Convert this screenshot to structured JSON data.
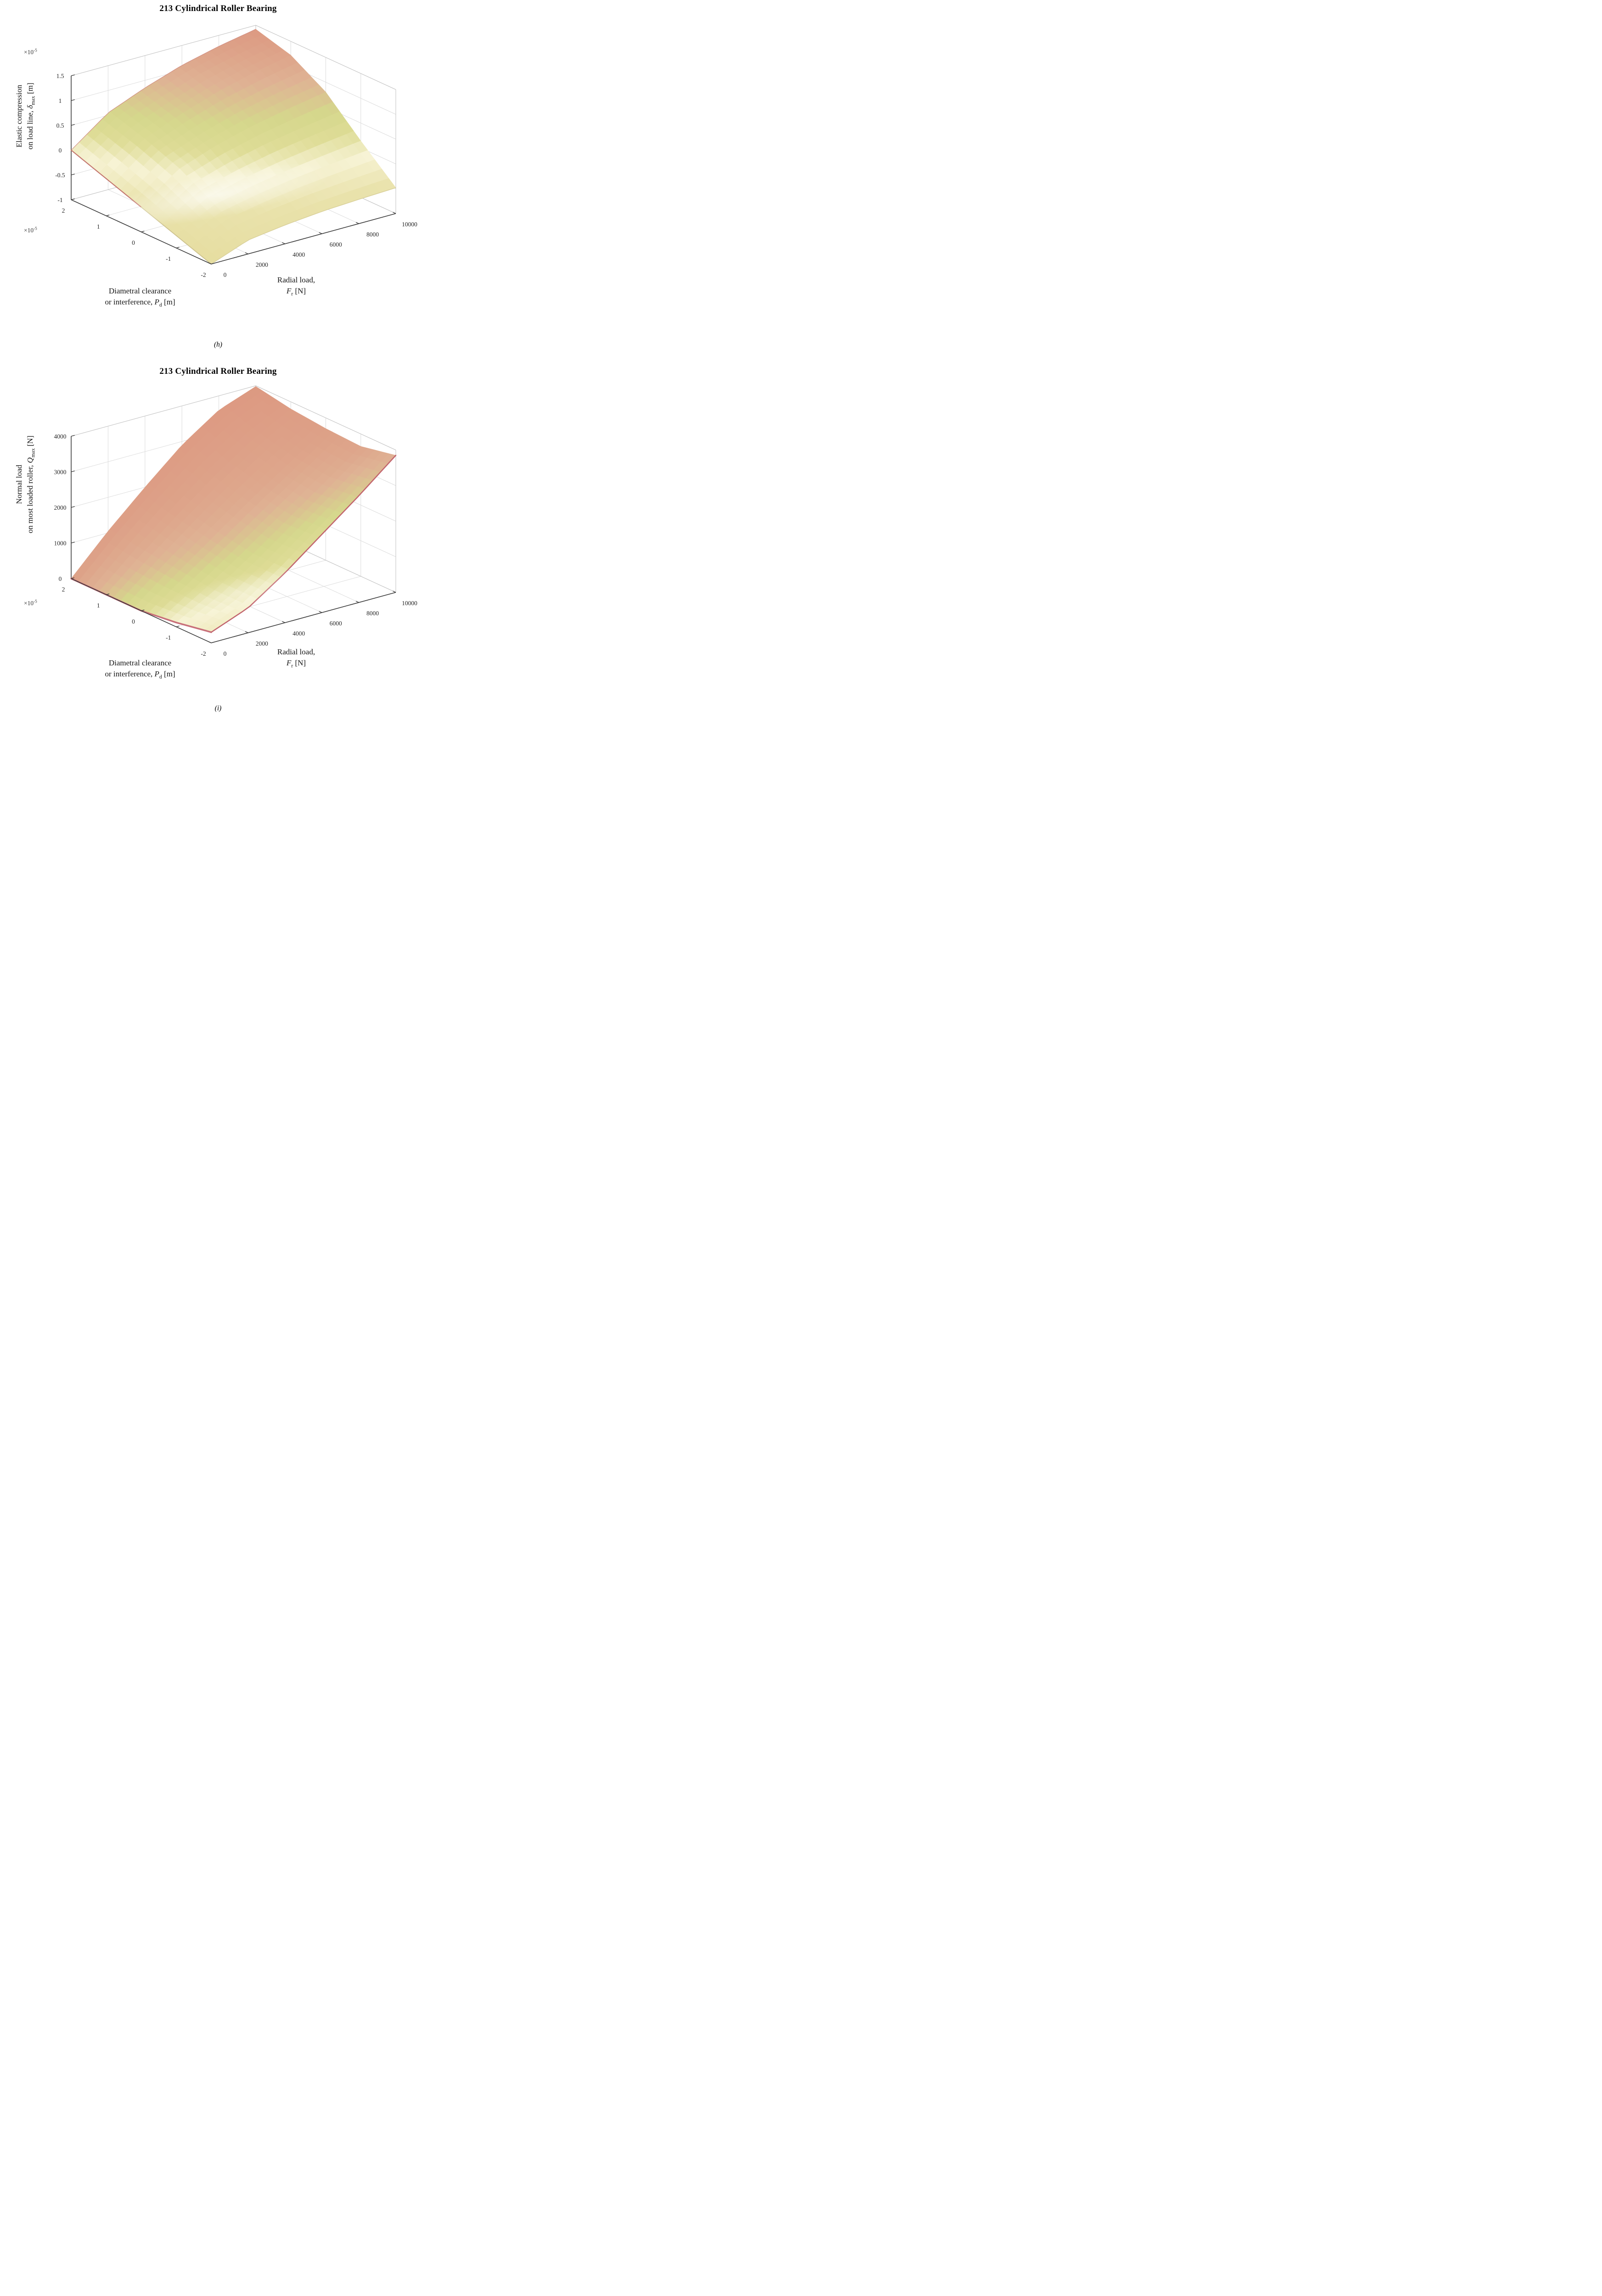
{
  "page": {
    "background": "#ffffff"
  },
  "style": {
    "colormap": [
      [
        0,
        "#e6dda0"
      ],
      [
        0.22,
        "#e9e2ab"
      ],
      [
        0.38,
        "#f7f3d5"
      ],
      [
        0.5,
        "#dedc96"
      ],
      [
        0.62,
        "#d5d78c"
      ],
      [
        0.78,
        "#dfb294"
      ],
      [
        1,
        "#dc957f"
      ]
    ],
    "axis_color": "#3a3a3a",
    "grid_color": "#dcdcdc",
    "box_color": "#c2c2c2",
    "text_color": "#262626",
    "highlight_color": "#ffffff",
    "surface_edge_red": "#c4776f",
    "surface_edge_khaki": "#cdc28e",
    "surface_edge_yellow": "#d9d09a",
    "surface_edge_salmon": "#d29084",
    "surface_edge_pink": "#c8707a",
    "surface_edge_darkpink": "#c2656e"
  },
  "figures": [
    {
      "title": "213 Cylindrical Roller Bearing",
      "caption": "(h)",
      "z_exponent": {
        "mult": "×10",
        "exp": "-5"
      },
      "pd_exponent": {
        "mult": "×10",
        "exp": "-5"
      },
      "zlabel": {
        "line1": "Elastic compression",
        "line2_pre": "on load line, ",
        "sym": "δ",
        "sub": "max",
        "unit": " [m]"
      },
      "xlabel": {
        "line1": "Diametral clearance",
        "line2_pre": "or interference, ",
        "sym": "P",
        "sub": "d",
        "unit": " [m]"
      },
      "ylabel": {
        "line1": "Radial load,",
        "sym": "F",
        "sub": "r",
        "unit": " [N]"
      }
    },
    {
      "title": "213 Cylindrical Roller Bearing",
      "caption": "(i)",
      "pd_exponent": {
        "mult": "×10",
        "exp": "-5"
      },
      "zlabel": {
        "line1": "Normal load",
        "line2_pre": "on most loaded roller, ",
        "sym": "Q",
        "sub": "max",
        "unit": " [N]"
      },
      "xlabel": {
        "line1": "Diametral clearance",
        "line2_pre": "or interference, ",
        "sym": "P",
        "sub": "d",
        "unit": " [m]"
      },
      "ylabel": {
        "line1": "Radial load,",
        "sym": "F",
        "sub": "r",
        "unit": " [N]"
      }
    }
  ],
  "chart_data": [
    {
      "type": "surface",
      "title": "213 Cylindrical Roller Bearing",
      "x": {
        "label": "Diametral clearance or interference, Pd",
        "unit": "m",
        "scale": "1e-5",
        "values": [
          2,
          1,
          0,
          -1,
          -2
        ]
      },
      "y": {
        "label": "Radial load, Fr",
        "unit": "N",
        "values": [
          0,
          2000,
          4000,
          6000,
          8000,
          10000
        ]
      },
      "z": {
        "label": "Elastic compression on load line, δmax",
        "unit": "m",
        "scale": "1e-5",
        "min": -1,
        "max": 1.5,
        "ticks": [
          -1,
          -0.5,
          0,
          0.5,
          1,
          1.5
        ]
      },
      "z_grid": [
        [
          0.0,
          0.55,
          0.85,
          1.1,
          1.28,
          1.42
        ],
        [
          -0.25,
          0.33,
          0.63,
          0.88,
          1.07,
          1.22
        ],
        [
          -0.5,
          0.05,
          0.32,
          0.52,
          0.67,
          0.8
        ],
        [
          -0.75,
          -0.35,
          -0.18,
          -0.05,
          0.05,
          0.14
        ],
        [
          -1.0,
          -0.72,
          -0.62,
          -0.55,
          -0.51,
          -0.48
        ]
      ],
      "color_grid": null,
      "grid_on": true,
      "legend": false
    },
    {
      "type": "surface",
      "title": "213 Cylindrical Roller Bearing",
      "x": {
        "label": "Diametral clearance or interference, Pd",
        "unit": "m",
        "scale": "1e-5",
        "values": [
          2,
          1,
          0,
          -1,
          -2
        ]
      },
      "y": {
        "label": "Radial load, Fr",
        "unit": "N",
        "values": [
          0,
          2000,
          4000,
          6000,
          8000,
          10000
        ]
      },
      "z": {
        "label": "Normal load on most loaded roller, Qmax",
        "unit": "N",
        "min": 0,
        "max": 4000,
        "ticks": [
          0,
          1000,
          2000,
          3000,
          4000
        ]
      },
      "z_grid": [
        [
          0,
          1050,
          2000,
          2900,
          3600,
          3980
        ],
        [
          0,
          900,
          1750,
          2550,
          3250,
          3800
        ],
        [
          0,
          800,
          1550,
          2300,
          3000,
          3700
        ],
        [
          120,
          700,
          1400,
          2150,
          2900,
          3650
        ],
        [
          300,
          700,
          1400,
          2200,
          3000,
          3850
        ]
      ],
      "color_grid": [
        [
          0.92,
          0.93,
          0.94,
          0.95,
          0.96,
          0.97
        ],
        [
          0.72,
          0.82,
          0.88,
          0.9,
          0.92,
          0.94
        ],
        [
          0.5,
          0.68,
          0.78,
          0.84,
          0.88,
          0.92
        ],
        [
          0.38,
          0.48,
          0.6,
          0.7,
          0.8,
          0.88
        ],
        [
          0.3,
          0.36,
          0.44,
          0.54,
          0.66,
          0.8
        ]
      ],
      "grid_on": true,
      "legend": false
    }
  ]
}
